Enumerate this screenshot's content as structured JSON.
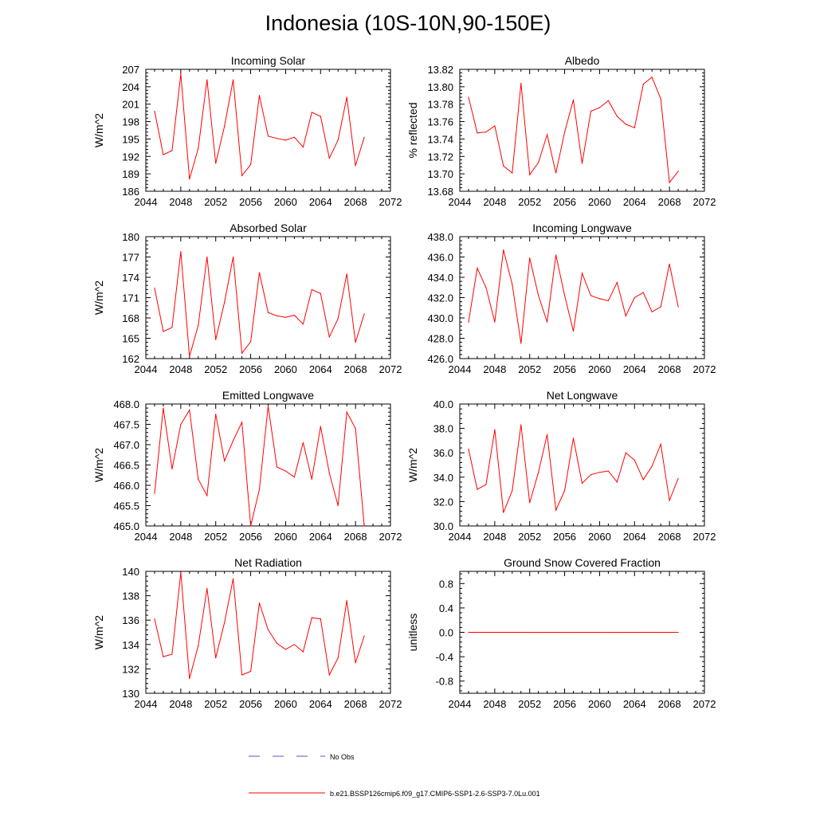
{
  "title": "Indonesia (10S-10N,90-150E)",
  "colors": {
    "model_line": "#ff0000",
    "obs_line": "#4a5ec0",
    "axis": "#000000"
  },
  "legend": {
    "obs_label": "No Obs",
    "model_label": "b.e21.BSSP126cmip6.f09_g17.CMIP6-SSP1-2.6-SSP3-7.0Lu.001"
  },
  "chart_data": [
    {
      "type": "line",
      "title": "Incoming Solar",
      "ylabel": "W/m^2",
      "xlim": [
        2044,
        2072
      ],
      "xticks": [
        "2044",
        "2048",
        "2052",
        "2056",
        "2060",
        "2064",
        "2068",
        "2072"
      ],
      "ylim": [
        186,
        207
      ],
      "yticks": [
        "186",
        "189",
        "192",
        "195",
        "198",
        "201",
        "204",
        "207"
      ],
      "x": [
        2045,
        2046,
        2047,
        2048,
        2049,
        2050,
        2051,
        2052,
        2053,
        2054,
        2055,
        2056,
        2057,
        2058,
        2059,
        2060,
        2061,
        2062,
        2063,
        2064,
        2065,
        2066,
        2067,
        2068,
        2069
      ],
      "series": [
        {
          "values": [
            199.8,
            192.3,
            193.0,
            206.2,
            188.1,
            193.4,
            205.2,
            190.8,
            197.2,
            205.2,
            188.7,
            190.6,
            202.5,
            195.5,
            195.1,
            194.8,
            195.3,
            193.6,
            199.6,
            198.9,
            191.7,
            194.8,
            202.2,
            190.4,
            195.3
          ]
        }
      ]
    },
    {
      "type": "line",
      "title": "Albedo",
      "ylabel": "% reflected",
      "xlim": [
        2044,
        2072
      ],
      "xticks": [
        "2044",
        "2048",
        "2052",
        "2056",
        "2060",
        "2064",
        "2068",
        "2072"
      ],
      "ylim": [
        13.68,
        13.82
      ],
      "yticks": [
        "13.68",
        "13.70",
        "13.72",
        "13.74",
        "13.76",
        "13.78",
        "13.80",
        "13.82"
      ],
      "x": [
        2045,
        2046,
        2047,
        2048,
        2049,
        2050,
        2051,
        2052,
        2053,
        2054,
        2055,
        2056,
        2057,
        2058,
        2059,
        2060,
        2061,
        2062,
        2063,
        2064,
        2065,
        2066,
        2067,
        2068,
        2069
      ],
      "series": [
        {
          "values": [
            13.788,
            13.747,
            13.748,
            13.755,
            13.709,
            13.701,
            13.804,
            13.699,
            13.713,
            13.745,
            13.701,
            13.748,
            13.785,
            13.712,
            13.772,
            13.776,
            13.784,
            13.766,
            13.757,
            13.753,
            13.803,
            13.811,
            13.786,
            13.69,
            13.703
          ]
        }
      ]
    },
    {
      "type": "line",
      "title": "Absorbed Solar",
      "ylabel": "W/m^2",
      "xlim": [
        2044,
        2072
      ],
      "xticks": [
        "2044",
        "2048",
        "2052",
        "2056",
        "2060",
        "2064",
        "2068",
        "2072"
      ],
      "ylim": [
        162,
        180
      ],
      "yticks": [
        "162",
        "165",
        "168",
        "171",
        "174",
        "177",
        "180"
      ],
      "x": [
        2045,
        2046,
        2047,
        2048,
        2049,
        2050,
        2051,
        2052,
        2053,
        2054,
        2055,
        2056,
        2057,
        2058,
        2059,
        2060,
        2061,
        2062,
        2063,
        2064,
        2065,
        2066,
        2067,
        2068,
        2069
      ],
      "series": [
        {
          "values": [
            172.4,
            166.0,
            166.6,
            177.8,
            162.3,
            166.9,
            177.0,
            164.8,
            170.3,
            177.0,
            162.8,
            164.5,
            174.7,
            168.8,
            168.3,
            168.1,
            168.4,
            167.1,
            172.2,
            171.6,
            165.2,
            167.9,
            174.5,
            164.4,
            168.6
          ]
        }
      ]
    },
    {
      "type": "line",
      "title": "Incoming Longwave",
      "ylabel": "",
      "xlim": [
        2044,
        2072
      ],
      "xticks": [
        "2044",
        "2048",
        "2052",
        "2056",
        "2060",
        "2064",
        "2068",
        "2072"
      ],
      "ylim": [
        426.0,
        438.0
      ],
      "yticks": [
        "426.0",
        "428.0",
        "430.0",
        "432.0",
        "434.0",
        "436.0",
        "438.0"
      ],
      "x": [
        2045,
        2046,
        2047,
        2048,
        2049,
        2050,
        2051,
        2052,
        2053,
        2054,
        2055,
        2056,
        2057,
        2058,
        2059,
        2060,
        2061,
        2062,
        2063,
        2064,
        2065,
        2066,
        2067,
        2068,
        2069
      ],
      "series": [
        {
          "values": [
            429.6,
            434.9,
            433.0,
            429.6,
            436.7,
            433.3,
            427.5,
            435.9,
            432.2,
            429.6,
            436.2,
            432.2,
            428.7,
            434.4,
            432.2,
            431.9,
            431.7,
            433.5,
            430.2,
            432.0,
            432.5,
            430.6,
            431.1,
            435.3,
            431.1
          ]
        }
      ]
    },
    {
      "type": "line",
      "title": "Emitted Longwave",
      "ylabel": "W/m^2",
      "xlim": [
        2044,
        2072
      ],
      "xticks": [
        "2044",
        "2048",
        "2052",
        "2056",
        "2060",
        "2064",
        "2068",
        "2072"
      ],
      "ylim": [
        465.0,
        468.0
      ],
      "yticks": [
        "465.0",
        "465.5",
        "466.0",
        "466.5",
        "467.0",
        "467.5",
        "468.0"
      ],
      "x": [
        2045,
        2046,
        2047,
        2048,
        2049,
        2050,
        2051,
        2052,
        2053,
        2054,
        2055,
        2056,
        2057,
        2058,
        2059,
        2060,
        2061,
        2062,
        2063,
        2064,
        2065,
        2066,
        2067,
        2068,
        2069
      ],
      "series": [
        {
          "values": [
            465.8,
            467.9,
            466.4,
            467.5,
            467.85,
            466.15,
            465.75,
            467.75,
            466.6,
            467.1,
            467.55,
            465.0,
            465.9,
            467.95,
            466.45,
            466.35,
            466.2,
            467.05,
            466.15,
            467.45,
            466.3,
            465.5,
            467.8,
            467.4,
            465.0
          ]
        }
      ]
    },
    {
      "type": "line",
      "title": "Net Longwave",
      "ylabel": "W/m^2",
      "xlim": [
        2044,
        2072
      ],
      "xticks": [
        "2044",
        "2048",
        "2052",
        "2056",
        "2060",
        "2064",
        "2068",
        "2072"
      ],
      "ylim": [
        30.0,
        40.0
      ],
      "yticks": [
        "30.0",
        "32.0",
        "34.0",
        "36.0",
        "38.0",
        "40.0"
      ],
      "x": [
        2045,
        2046,
        2047,
        2048,
        2049,
        2050,
        2051,
        2052,
        2053,
        2054,
        2055,
        2056,
        2057,
        2058,
        2059,
        2060,
        2061,
        2062,
        2063,
        2064,
        2065,
        2066,
        2067,
        2068,
        2069
      ],
      "series": [
        {
          "values": [
            36.3,
            33.0,
            33.4,
            37.9,
            31.1,
            32.9,
            38.3,
            31.9,
            34.4,
            37.5,
            31.3,
            32.9,
            37.2,
            33.5,
            34.2,
            34.4,
            34.5,
            33.6,
            36.0,
            35.4,
            33.8,
            34.9,
            36.7,
            32.1,
            33.9
          ]
        }
      ]
    },
    {
      "type": "line",
      "title": "Net Radiation",
      "ylabel": "W/m^2",
      "xlim": [
        2044,
        2072
      ],
      "xticks": [
        "2044",
        "2048",
        "2052",
        "2056",
        "2060",
        "2064",
        "2068",
        "2072"
      ],
      "ylim": [
        130,
        140
      ],
      "yticks": [
        "130",
        "132",
        "134",
        "136",
        "138",
        "140"
      ],
      "x": [
        2045,
        2046,
        2047,
        2048,
        2049,
        2050,
        2051,
        2052,
        2053,
        2054,
        2055,
        2056,
        2057,
        2058,
        2059,
        2060,
        2061,
        2062,
        2063,
        2064,
        2065,
        2066,
        2067,
        2068,
        2069
      ],
      "series": [
        {
          "values": [
            136.1,
            133.0,
            133.2,
            139.9,
            131.2,
            133.9,
            138.6,
            132.9,
            135.8,
            139.4,
            131.5,
            131.8,
            137.4,
            135.2,
            134.1,
            133.6,
            134.0,
            133.4,
            136.2,
            136.1,
            131.5,
            132.9,
            137.6,
            132.5,
            134.7
          ]
        }
      ]
    },
    {
      "type": "line",
      "title": "Ground Snow Covered Fraction",
      "ylabel": "unitless",
      "xlim": [
        2044,
        2072
      ],
      "xticks": [
        "2044",
        "2048",
        "2052",
        "2056",
        "2060",
        "2064",
        "2068",
        "2072"
      ],
      "ylim": [
        -1.0,
        1.0
      ],
      "yticks": [
        "-0.8",
        "-0.4",
        "0.0",
        "0.4",
        "0.8"
      ],
      "x": [
        2045,
        2046,
        2047,
        2048,
        2049,
        2050,
        2051,
        2052,
        2053,
        2054,
        2055,
        2056,
        2057,
        2058,
        2059,
        2060,
        2061,
        2062,
        2063,
        2064,
        2065,
        2066,
        2067,
        2068,
        2069
      ],
      "series": [
        {
          "values": [
            0,
            0,
            0,
            0,
            0,
            0,
            0,
            0,
            0,
            0,
            0,
            0,
            0,
            0,
            0,
            0,
            0,
            0,
            0,
            0,
            0,
            0,
            0,
            0,
            0
          ]
        }
      ]
    }
  ]
}
